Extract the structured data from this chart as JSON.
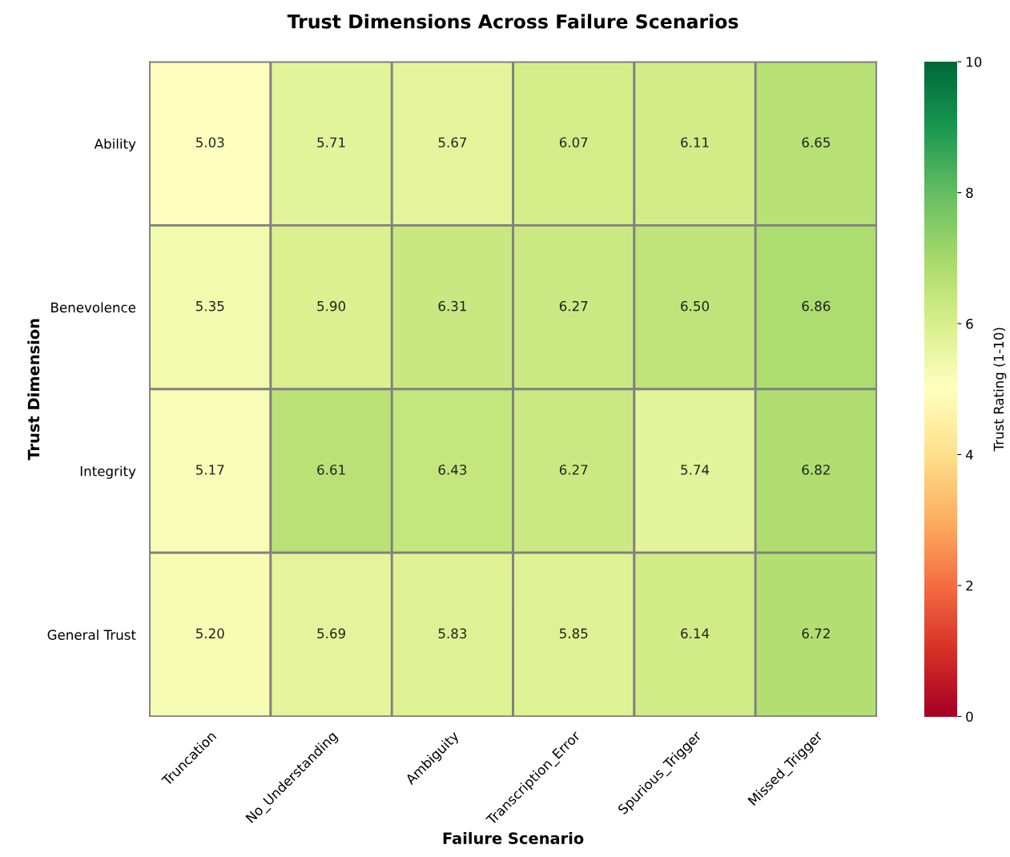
{
  "chart_data": {
    "type": "heatmap",
    "title": "Trust Dimensions Across Failure Scenarios",
    "xlabel": "Failure Scenario",
    "ylabel": "Trust Dimension",
    "clabel": "Trust Rating (1-10)",
    "categories": [
      "Truncation",
      "No_Understanding",
      "Ambiguity",
      "Transcription_Error",
      "Spurious_Trigger",
      "Missed_Trigger"
    ],
    "y_categories": [
      "Ability",
      "Benevolence",
      "Integrity",
      "General Trust"
    ],
    "cells": [
      [
        5.03,
        5.71,
        5.67,
        6.07,
        6.11,
        6.65
      ],
      [
        5.35,
        5.9,
        6.31,
        6.27,
        6.5,
        6.86
      ],
      [
        5.17,
        6.61,
        6.43,
        6.27,
        5.74,
        6.82
      ],
      [
        5.2,
        5.69,
        5.83,
        5.85,
        6.14,
        6.72
      ]
    ],
    "cell_labels": [
      [
        "5.03",
        "5.71",
        "5.67",
        "6.07",
        "6.11",
        "6.65"
      ],
      [
        "5.35",
        "5.90",
        "6.31",
        "6.27",
        "6.50",
        "6.86"
      ],
      [
        "5.17",
        "6.61",
        "6.43",
        "6.27",
        "5.74",
        "6.82"
      ],
      [
        "5.20",
        "5.69",
        "5.83",
        "5.85",
        "6.14",
        "6.72"
      ]
    ],
    "data_labels": true,
    "clim": [
      0,
      10
    ],
    "cticks": [
      0,
      2,
      4,
      6,
      8,
      10
    ]
  }
}
